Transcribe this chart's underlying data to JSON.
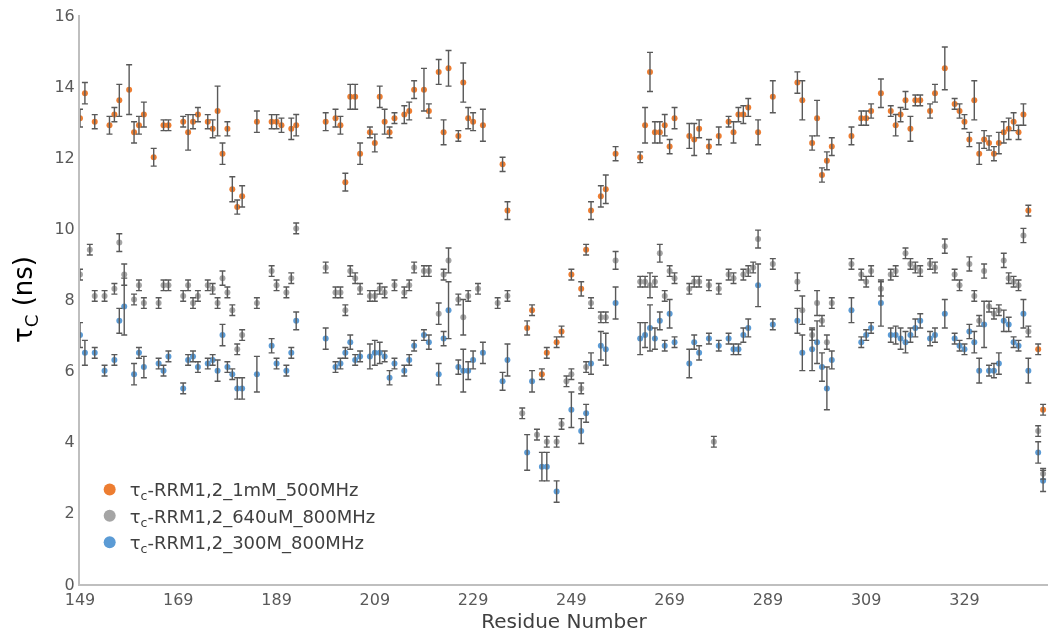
{
  "chart_data": {
    "type": "scatter",
    "xlabel": "Residue Number",
    "ylabel": "τ$_{C}$ (ns)",
    "xlim": [
      149,
      346
    ],
    "xticks": [
      149,
      169,
      189,
      209,
      229,
      249,
      269,
      289,
      309,
      329
    ],
    "ylim": [
      0,
      16
    ],
    "yticks": [
      0,
      2,
      4,
      6,
      8,
      10,
      12,
      14,
      16
    ],
    "grid": false,
    "legend": "bottom left",
    "marker": "circle",
    "series": [
      {
        "name": "τ$_{c}$-RRM1,2_1mM_500MHz",
        "color": "#ed7d31",
        "x": [
          149,
          150,
          152,
          155,
          156,
          157,
          159,
          160,
          161,
          162,
          164,
          166,
          167,
          170,
          171,
          172,
          173,
          175,
          176,
          177,
          178,
          179,
          180,
          181,
          182,
          185,
          188,
          189,
          190,
          192,
          193,
          199,
          201,
          202,
          203,
          204,
          205,
          206,
          208,
          209,
          210,
          211,
          212,
          213,
          215,
          216,
          217,
          219,
          220,
          222,
          223,
          224,
          226,
          227,
          228,
          229,
          231,
          235,
          236,
          240,
          241,
          243,
          244,
          246,
          247,
          249,
          251,
          252,
          253,
          255,
          256,
          258,
          263,
          264,
          265,
          266,
          267,
          268,
          269,
          270,
          273,
          274,
          275,
          277,
          279,
          281,
          282,
          283,
          284,
          285,
          287,
          290,
          295,
          296,
          298,
          299,
          300,
          301,
          302,
          306,
          308,
          309,
          310,
          312,
          314,
          315,
          316,
          317,
          318,
          319,
          320,
          322,
          323,
          325,
          327,
          328,
          329,
          330,
          331,
          332,
          333,
          334,
          335,
          336,
          337,
          338,
          339,
          340,
          341,
          342,
          344,
          345
        ],
        "values": [
          13.1,
          13.8,
          13.0,
          12.9,
          13.2,
          13.6,
          13.9,
          12.7,
          12.9,
          13.2,
          12.0,
          12.9,
          12.9,
          13.0,
          12.7,
          13.0,
          13.2,
          13.0,
          12.8,
          13.3,
          12.1,
          12.8,
          11.1,
          10.6,
          10.9,
          13.0,
          13.0,
          13.0,
          12.9,
          12.8,
          12.9,
          13.0,
          13.1,
          12.9,
          11.3,
          13.7,
          13.7,
          12.1,
          12.7,
          12.4,
          13.7,
          13.0,
          12.7,
          13.1,
          13.2,
          13.3,
          13.9,
          13.9,
          13.3,
          14.4,
          12.7,
          14.5,
          12.6,
          14.1,
          13.1,
          13.0,
          12.9,
          11.8,
          10.5,
          7.2,
          7.7,
          5.9,
          6.5,
          6.8,
          7.1,
          8.7,
          8.3,
          9.4,
          10.5,
          10.9,
          11.1,
          12.1,
          12.0,
          12.9,
          14.4,
          12.7,
          12.7,
          12.9,
          12.3,
          13.1,
          12.6,
          12.5,
          12.8,
          12.3,
          12.6,
          13.0,
          12.7,
          13.2,
          13.2,
          13.4,
          12.7,
          13.7,
          14.1,
          13.6,
          12.4,
          13.1,
          11.5,
          11.9,
          12.3,
          12.6,
          13.1,
          13.1,
          13.3,
          13.8,
          13.3,
          12.9,
          13.2,
          13.6,
          12.8,
          13.6,
          13.6,
          13.3,
          13.8,
          14.5,
          13.5,
          13.3,
          13.0,
          12.5,
          13.6,
          12.1,
          12.5,
          12.4,
          12.1,
          12.4,
          12.7,
          12.8,
          13.0,
          12.7,
          13.2,
          10.5,
          6.6,
          4.9
        ],
        "errors": [
          0.25,
          0.3,
          0.2,
          0.25,
          0.2,
          0.45,
          0.7,
          0.3,
          0.25,
          0.35,
          0.25,
          0.15,
          0.15,
          0.15,
          0.5,
          0.2,
          0.2,
          0.2,
          0.25,
          0.7,
          0.3,
          0.2,
          0.35,
          0.2,
          0.3,
          0.3,
          0.2,
          0.2,
          0.2,
          0.3,
          0.3,
          0.25,
          0.25,
          0.25,
          0.25,
          0.35,
          0.35,
          0.3,
          0.15,
          0.25,
          0.3,
          0.35,
          0.15,
          0.15,
          0.25,
          0.25,
          0.25,
          0.6,
          0.2,
          0.35,
          0.35,
          0.5,
          0.15,
          0.55,
          0.3,
          0.25,
          0.45,
          0.2,
          0.25,
          0.2,
          0.15,
          0.15,
          0.15,
          0.15,
          0.15,
          0.15,
          0.2,
          0.15,
          0.25,
          0.3,
          0.4,
          0.2,
          0.15,
          0.5,
          0.55,
          0.3,
          0.3,
          0.3,
          0.2,
          0.3,
          0.35,
          0.45,
          0.25,
          0.2,
          0.25,
          0.15,
          0.3,
          0.2,
          0.25,
          0.25,
          0.35,
          0.45,
          0.3,
          0.55,
          0.2,
          0.5,
          0.2,
          0.25,
          0.25,
          0.25,
          0.2,
          0.2,
          0.2,
          0.4,
          0.15,
          0.3,
          0.2,
          0.25,
          0.35,
          0.15,
          0.15,
          0.2,
          0.25,
          0.6,
          0.15,
          0.2,
          0.2,
          0.2,
          0.55,
          0.3,
          0.25,
          0.2,
          0.2,
          0.3,
          0.3,
          0.3,
          0.25,
          0.2,
          0.3,
          0.15,
          0.15,
          0.15
        ]
      },
      {
        "name": "τ$_{c}$-RRM1,2_640uM_800MHz",
        "color": "#a5a5a5",
        "x": [
          149,
          151,
          152,
          154,
          156,
          157,
          158,
          160,
          161,
          162,
          165,
          166,
          167,
          170,
          171,
          172,
          173,
          175,
          176,
          177,
          178,
          179,
          180,
          181,
          182,
          185,
          188,
          189,
          191,
          192,
          193,
          199,
          201,
          202,
          203,
          204,
          205,
          206,
          208,
          209,
          210,
          211,
          213,
          215,
          216,
          217,
          219,
          220,
          222,
          223,
          224,
          226,
          227,
          228,
          230,
          234,
          236,
          239,
          242,
          244,
          246,
          247,
          248,
          249,
          251,
          252,
          253,
          255,
          256,
          258,
          263,
          264,
          265,
          266,
          267,
          268,
          269,
          270,
          273,
          274,
          275,
          277,
          278,
          279,
          281,
          282,
          284,
          285,
          286,
          287,
          290,
          295,
          296,
          298,
          299,
          300,
          301,
          302,
          306,
          308,
          309,
          310,
          312,
          314,
          315,
          317,
          318,
          319,
          320,
          322,
          323,
          325,
          327,
          328,
          330,
          331,
          332,
          333,
          334,
          335,
          336,
          337,
          338,
          339,
          340,
          341,
          342,
          344,
          345
        ],
        "values": [
          8.7,
          9.4,
          8.1,
          8.1,
          8.3,
          9.6,
          8.7,
          8.0,
          8.4,
          7.9,
          7.9,
          8.4,
          8.4,
          8.1,
          8.4,
          7.9,
          8.1,
          8.4,
          8.3,
          7.9,
          8.6,
          8.2,
          7.7,
          6.6,
          7.0,
          7.9,
          8.8,
          8.4,
          8.2,
          8.6,
          10.0,
          8.9,
          8.2,
          8.2,
          7.7,
          8.8,
          8.6,
          8.3,
          8.1,
          8.1,
          8.3,
          8.2,
          8.4,
          8.2,
          8.4,
          8.9,
          8.8,
          8.8,
          7.6,
          8.7,
          9.1,
          8.0,
          7.5,
          8.1,
          8.3,
          7.9,
          8.1,
          4.8,
          4.2,
          4.0,
          4.0,
          4.5,
          5.7,
          5.9,
          5.5,
          6.1,
          7.9,
          7.5,
          7.5,
          9.1,
          8.5,
          8.5,
          8.4,
          8.5,
          9.3,
          8.1,
          8.8,
          8.6,
          8.3,
          8.5,
          8.5,
          8.4,
          4.0,
          8.3,
          8.7,
          8.6,
          8.7,
          8.8,
          8.9,
          9.7,
          9.0,
          8.5,
          7.7,
          7.0,
          7.9,
          7.4,
          6.8,
          7.9,
          9.0,
          8.7,
          8.5,
          8.8,
          8.3,
          8.7,
          8.8,
          9.3,
          9.0,
          8.9,
          8.8,
          9.0,
          8.9,
          9.5,
          8.7,
          8.4,
          9.0,
          8.1,
          7.4,
          8.8,
          7.8,
          7.6,
          7.7,
          9.1,
          8.6,
          8.5,
          8.4,
          9.8,
          7.1,
          4.3,
          3.1
        ],
        "errors": [
          0.15,
          0.15,
          0.15,
          0.15,
          0.15,
          0.25,
          0.3,
          0.15,
          0.15,
          0.15,
          0.15,
          0.15,
          0.15,
          0.15,
          0.15,
          0.15,
          0.15,
          0.15,
          0.15,
          0.15,
          0.2,
          0.15,
          0.15,
          0.15,
          0.15,
          0.15,
          0.15,
          0.15,
          0.15,
          0.15,
          0.15,
          0.15,
          0.15,
          0.15,
          0.15,
          0.15,
          0.15,
          0.15,
          0.15,
          0.15,
          0.15,
          0.15,
          0.15,
          0.15,
          0.15,
          0.15,
          0.15,
          0.15,
          0.3,
          0.15,
          0.35,
          0.15,
          0.5,
          0.15,
          0.15,
          0.15,
          0.15,
          0.15,
          0.15,
          0.15,
          0.15,
          0.15,
          0.15,
          0.15,
          0.15,
          0.15,
          0.15,
          0.15,
          0.15,
          0.25,
          0.15,
          0.15,
          0.35,
          0.15,
          0.25,
          0.15,
          0.15,
          0.15,
          0.15,
          0.15,
          0.15,
          0.15,
          0.15,
          0.15,
          0.15,
          0.15,
          0.15,
          0.15,
          0.15,
          0.25,
          0.15,
          0.25,
          0.4,
          0.15,
          0.35,
          0.15,
          0.2,
          0.15,
          0.15,
          0.15,
          0.15,
          0.15,
          0.2,
          0.15,
          0.15,
          0.15,
          0.15,
          0.15,
          0.15,
          0.15,
          0.15,
          0.2,
          0.15,
          0.15,
          0.2,
          0.15,
          0.15,
          0.2,
          0.15,
          0.15,
          0.15,
          0.2,
          0.15,
          0.15,
          0.15,
          0.2,
          0.15,
          0.15,
          0.15
        ]
      },
      {
        "name": "τ$_{c}$-RRM1,2_300M_800MHz",
        "color": "#5b9bd5",
        "x": [
          149,
          150,
          152,
          154,
          156,
          157,
          158,
          160,
          161,
          162,
          165,
          166,
          167,
          170,
          171,
          172,
          173,
          175,
          176,
          177,
          178,
          179,
          180,
          181,
          182,
          185,
          188,
          189,
          191,
          192,
          193,
          199,
          201,
          202,
          203,
          204,
          205,
          206,
          208,
          209,
          210,
          211,
          212,
          213,
          215,
          216,
          217,
          219,
          220,
          222,
          223,
          224,
          226,
          227,
          228,
          229,
          231,
          235,
          236,
          240,
          241,
          243,
          244,
          246,
          249,
          251,
          252,
          253,
          255,
          256,
          258,
          263,
          264,
          265,
          266,
          267,
          268,
          269,
          270,
          273,
          274,
          275,
          277,
          279,
          281,
          282,
          283,
          284,
          285,
          287,
          290,
          295,
          296,
          298,
          299,
          300,
          301,
          302,
          306,
          308,
          309,
          310,
          312,
          314,
          315,
          316,
          317,
          318,
          319,
          320,
          322,
          323,
          325,
          327,
          328,
          329,
          330,
          331,
          332,
          333,
          334,
          335,
          336,
          337,
          338,
          339,
          340,
          341,
          342,
          344,
          345
        ],
        "values": [
          7.0,
          6.5,
          6.5,
          6.0,
          6.3,
          7.4,
          7.8,
          5.9,
          6.5,
          6.1,
          6.2,
          6.0,
          6.4,
          5.5,
          6.3,
          6.4,
          6.1,
          6.2,
          6.3,
          6.0,
          7.0,
          6.1,
          5.9,
          5.5,
          5.5,
          5.9,
          6.7,
          6.2,
          6.0,
          6.5,
          7.4,
          6.9,
          6.1,
          6.2,
          6.5,
          6.8,
          6.3,
          6.4,
          6.4,
          6.5,
          6.5,
          6.4,
          5.8,
          6.2,
          6.0,
          6.3,
          6.7,
          7.0,
          6.8,
          5.9,
          6.9,
          7.7,
          6.1,
          6.0,
          6.0,
          6.3,
          6.5,
          5.7,
          6.3,
          3.7,
          5.7,
          3.3,
          3.3,
          2.6,
          4.9,
          4.3,
          4.8,
          6.2,
          6.7,
          6.6,
          7.9,
          6.9,
          7.0,
          7.2,
          6.9,
          7.4,
          6.7,
          7.6,
          6.8,
          6.2,
          6.8,
          6.5,
          6.9,
          6.7,
          6.9,
          6.6,
          6.6,
          7.0,
          7.2,
          8.4,
          7.3,
          7.4,
          6.5,
          6.6,
          6.8,
          6.1,
          5.5,
          6.3,
          7.7,
          6.8,
          7.0,
          7.2,
          7.9,
          7.0,
          7.0,
          6.9,
          6.8,
          7.0,
          7.2,
          7.4,
          6.9,
          7.0,
          7.6,
          6.9,
          6.7,
          6.6,
          7.1,
          6.8,
          6.0,
          7.3,
          6.0,
          6.0,
          6.2,
          7.4,
          7.3,
          6.8,
          6.7,
          7.6,
          6.0,
          3.7,
          2.9
        ],
        "errors": [
          0.35,
          0.35,
          0.15,
          0.15,
          0.15,
          0.35,
          0.8,
          0.3,
          0.15,
          0.3,
          0.15,
          0.15,
          0.15,
          0.15,
          0.15,
          0.15,
          0.15,
          0.15,
          0.15,
          0.3,
          0.3,
          0.15,
          0.15,
          0.3,
          0.3,
          0.5,
          0.2,
          0.15,
          0.15,
          0.15,
          0.25,
          0.3,
          0.15,
          0.15,
          0.15,
          0.2,
          0.15,
          0.15,
          0.35,
          0.35,
          0.3,
          0.15,
          0.2,
          0.15,
          0.15,
          0.15,
          0.15,
          0.15,
          0.2,
          0.3,
          0.2,
          0.8,
          0.2,
          0.6,
          0.25,
          0.25,
          0.3,
          0.25,
          0.45,
          0.5,
          0.3,
          0.4,
          0.4,
          0.3,
          0.5,
          0.35,
          0.25,
          0.3,
          0.4,
          0.45,
          0.45,
          0.45,
          0.35,
          0.65,
          0.3,
          0.25,
          0.15,
          0.4,
          0.15,
          0.4,
          0.2,
          0.2,
          0.15,
          0.15,
          0.15,
          0.15,
          0.15,
          0.2,
          0.25,
          0.6,
          0.15,
          0.35,
          0.5,
          0.6,
          0.6,
          0.4,
          0.6,
          0.25,
          0.35,
          0.15,
          0.15,
          0.15,
          0.65,
          0.2,
          0.25,
          0.3,
          0.3,
          0.2,
          0.25,
          0.2,
          0.2,
          0.2,
          0.4,
          0.15,
          0.15,
          0.15,
          0.2,
          0.3,
          0.35,
          0.65,
          0.15,
          0.2,
          0.3,
          0.3,
          0.2,
          0.15,
          0.15,
          0.4,
          0.35,
          0.3,
          0.3
        ]
      }
    ]
  }
}
